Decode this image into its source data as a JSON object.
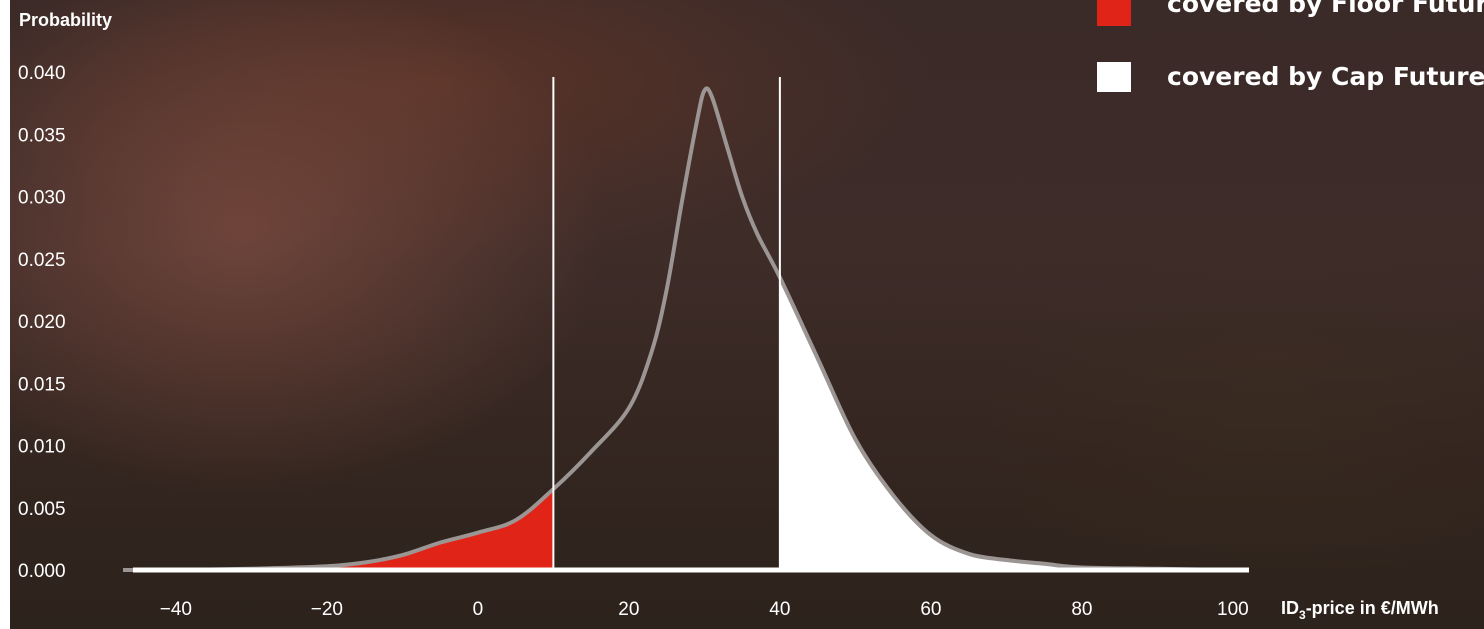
{
  "chart_data": {
    "type": "area",
    "ylabel": "Probability",
    "xlabel": "ID3-price in €/MWh",
    "xlabel_parts": [
      "ID",
      "3",
      "-price in €/MWh"
    ],
    "xlim": [
      -47,
      102
    ],
    "ylim": [
      0,
      0.04
    ],
    "x_ticks": [
      -40,
      -20,
      0,
      20,
      40,
      60,
      80,
      100
    ],
    "y_ticks": [
      "0.000",
      "0.005",
      "0.010",
      "0.015",
      "0.020",
      "0.025",
      "0.030",
      "0.035",
      "0.040"
    ],
    "floor_threshold": 10,
    "cap_threshold": 40,
    "density_curve": {
      "x": [
        -47,
        -40,
        -30,
        -20,
        -15,
        -10,
        -5,
        0,
        5,
        10,
        15,
        20,
        23,
        25,
        27,
        29,
        30,
        31,
        33,
        35,
        37,
        40,
        45,
        50,
        55,
        60,
        65,
        70,
        75,
        80,
        90,
        100,
        102
      ],
      "y": [
        0,
        0.0,
        0.0001,
        0.0003,
        0.0006,
        0.0012,
        0.0022,
        0.003,
        0.004,
        0.0065,
        0.0095,
        0.013,
        0.0175,
        0.0225,
        0.0295,
        0.036,
        0.0385,
        0.038,
        0.034,
        0.03,
        0.027,
        0.0235,
        0.017,
        0.0105,
        0.006,
        0.0028,
        0.0013,
        0.0008,
        0.0005,
        0.0002,
        0.0001,
        0.0,
        0
      ]
    },
    "legend": [
      {
        "label": "covered by Floor Futures",
        "color": "#e02418"
      },
      {
        "label": "covered by Cap Futures",
        "color": "#ffffff"
      }
    ]
  }
}
